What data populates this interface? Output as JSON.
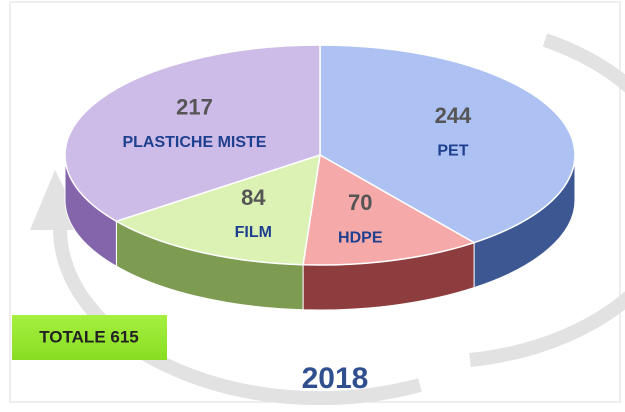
{
  "chart_data": {
    "type": "pie3d",
    "title": "2018",
    "annotation": "TOTALE 615",
    "categories": [
      "PET",
      "HDPE",
      "FILM",
      "PLASTICHE MISTE"
    ],
    "values": [
      244,
      70,
      84,
      217
    ],
    "colors": [
      "#adc2f2",
      "#f5a9a9",
      "#dcf2b4",
      "#cdbbe8"
    ],
    "side_colors": [
      "#3d5793",
      "#8e3d3f",
      "#7d9c52",
      "#8464ab"
    ]
  }
}
